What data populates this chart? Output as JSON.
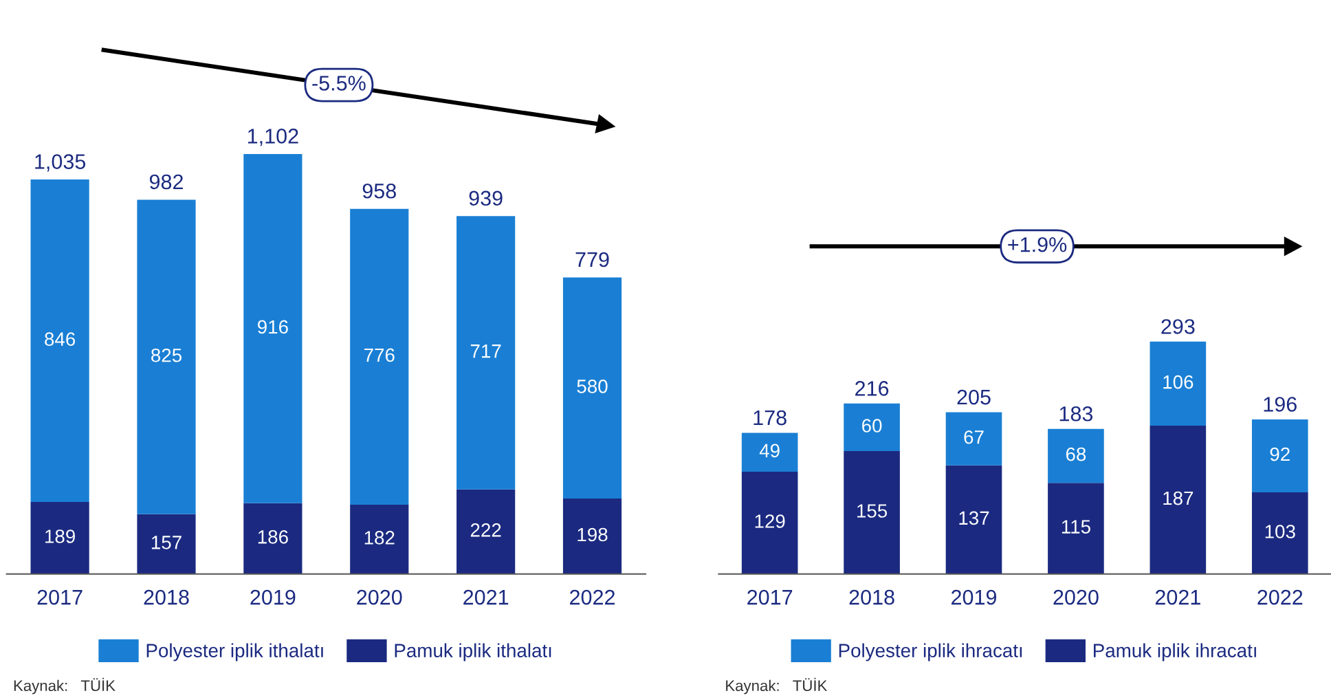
{
  "chart_data": [
    {
      "type": "bar",
      "stacked": true,
      "categories": [
        "2017",
        "2018",
        "2019",
        "2020",
        "2021",
        "2022"
      ],
      "series": [
        {
          "name": "Pamuk iplik ithalatı",
          "color": "#1b2a80",
          "values": [
            189,
            157,
            186,
            182,
            222,
            198
          ]
        },
        {
          "name": "Polyester iplik ithalatı",
          "color": "#1a7fd4",
          "values": [
            846,
            825,
            916,
            776,
            717,
            580
          ]
        }
      ],
      "totals": [
        "1,035",
        "982",
        "1,102",
        "958",
        "939",
        "779"
      ],
      "data_labels": true,
      "legend": "bottom",
      "grid": false,
      "annotations": [
        "-5.5%",
        "Kaynak:   TÜİK"
      ]
    },
    {
      "type": "bar",
      "stacked": true,
      "categories": [
        "2017",
        "2018",
        "2019",
        "2020",
        "2021",
        "2022"
      ],
      "series": [
        {
          "name": "Pamuk iplik ihracatı",
          "color": "#1b2a80",
          "values": [
            129,
            155,
            137,
            115,
            187,
            103
          ]
        },
        {
          "name": "Polyester iplik ihracatı",
          "color": "#1a7fd4",
          "values": [
            49,
            60,
            67,
            68,
            106,
            92
          ]
        }
      ],
      "totals": [
        "178",
        "216",
        "205",
        "183",
        "293",
        "196"
      ],
      "data_labels": true,
      "legend": "bottom",
      "grid": false,
      "annotations": [
        "+1.9%",
        "Kaynak:   TÜİK"
      ]
    }
  ]
}
